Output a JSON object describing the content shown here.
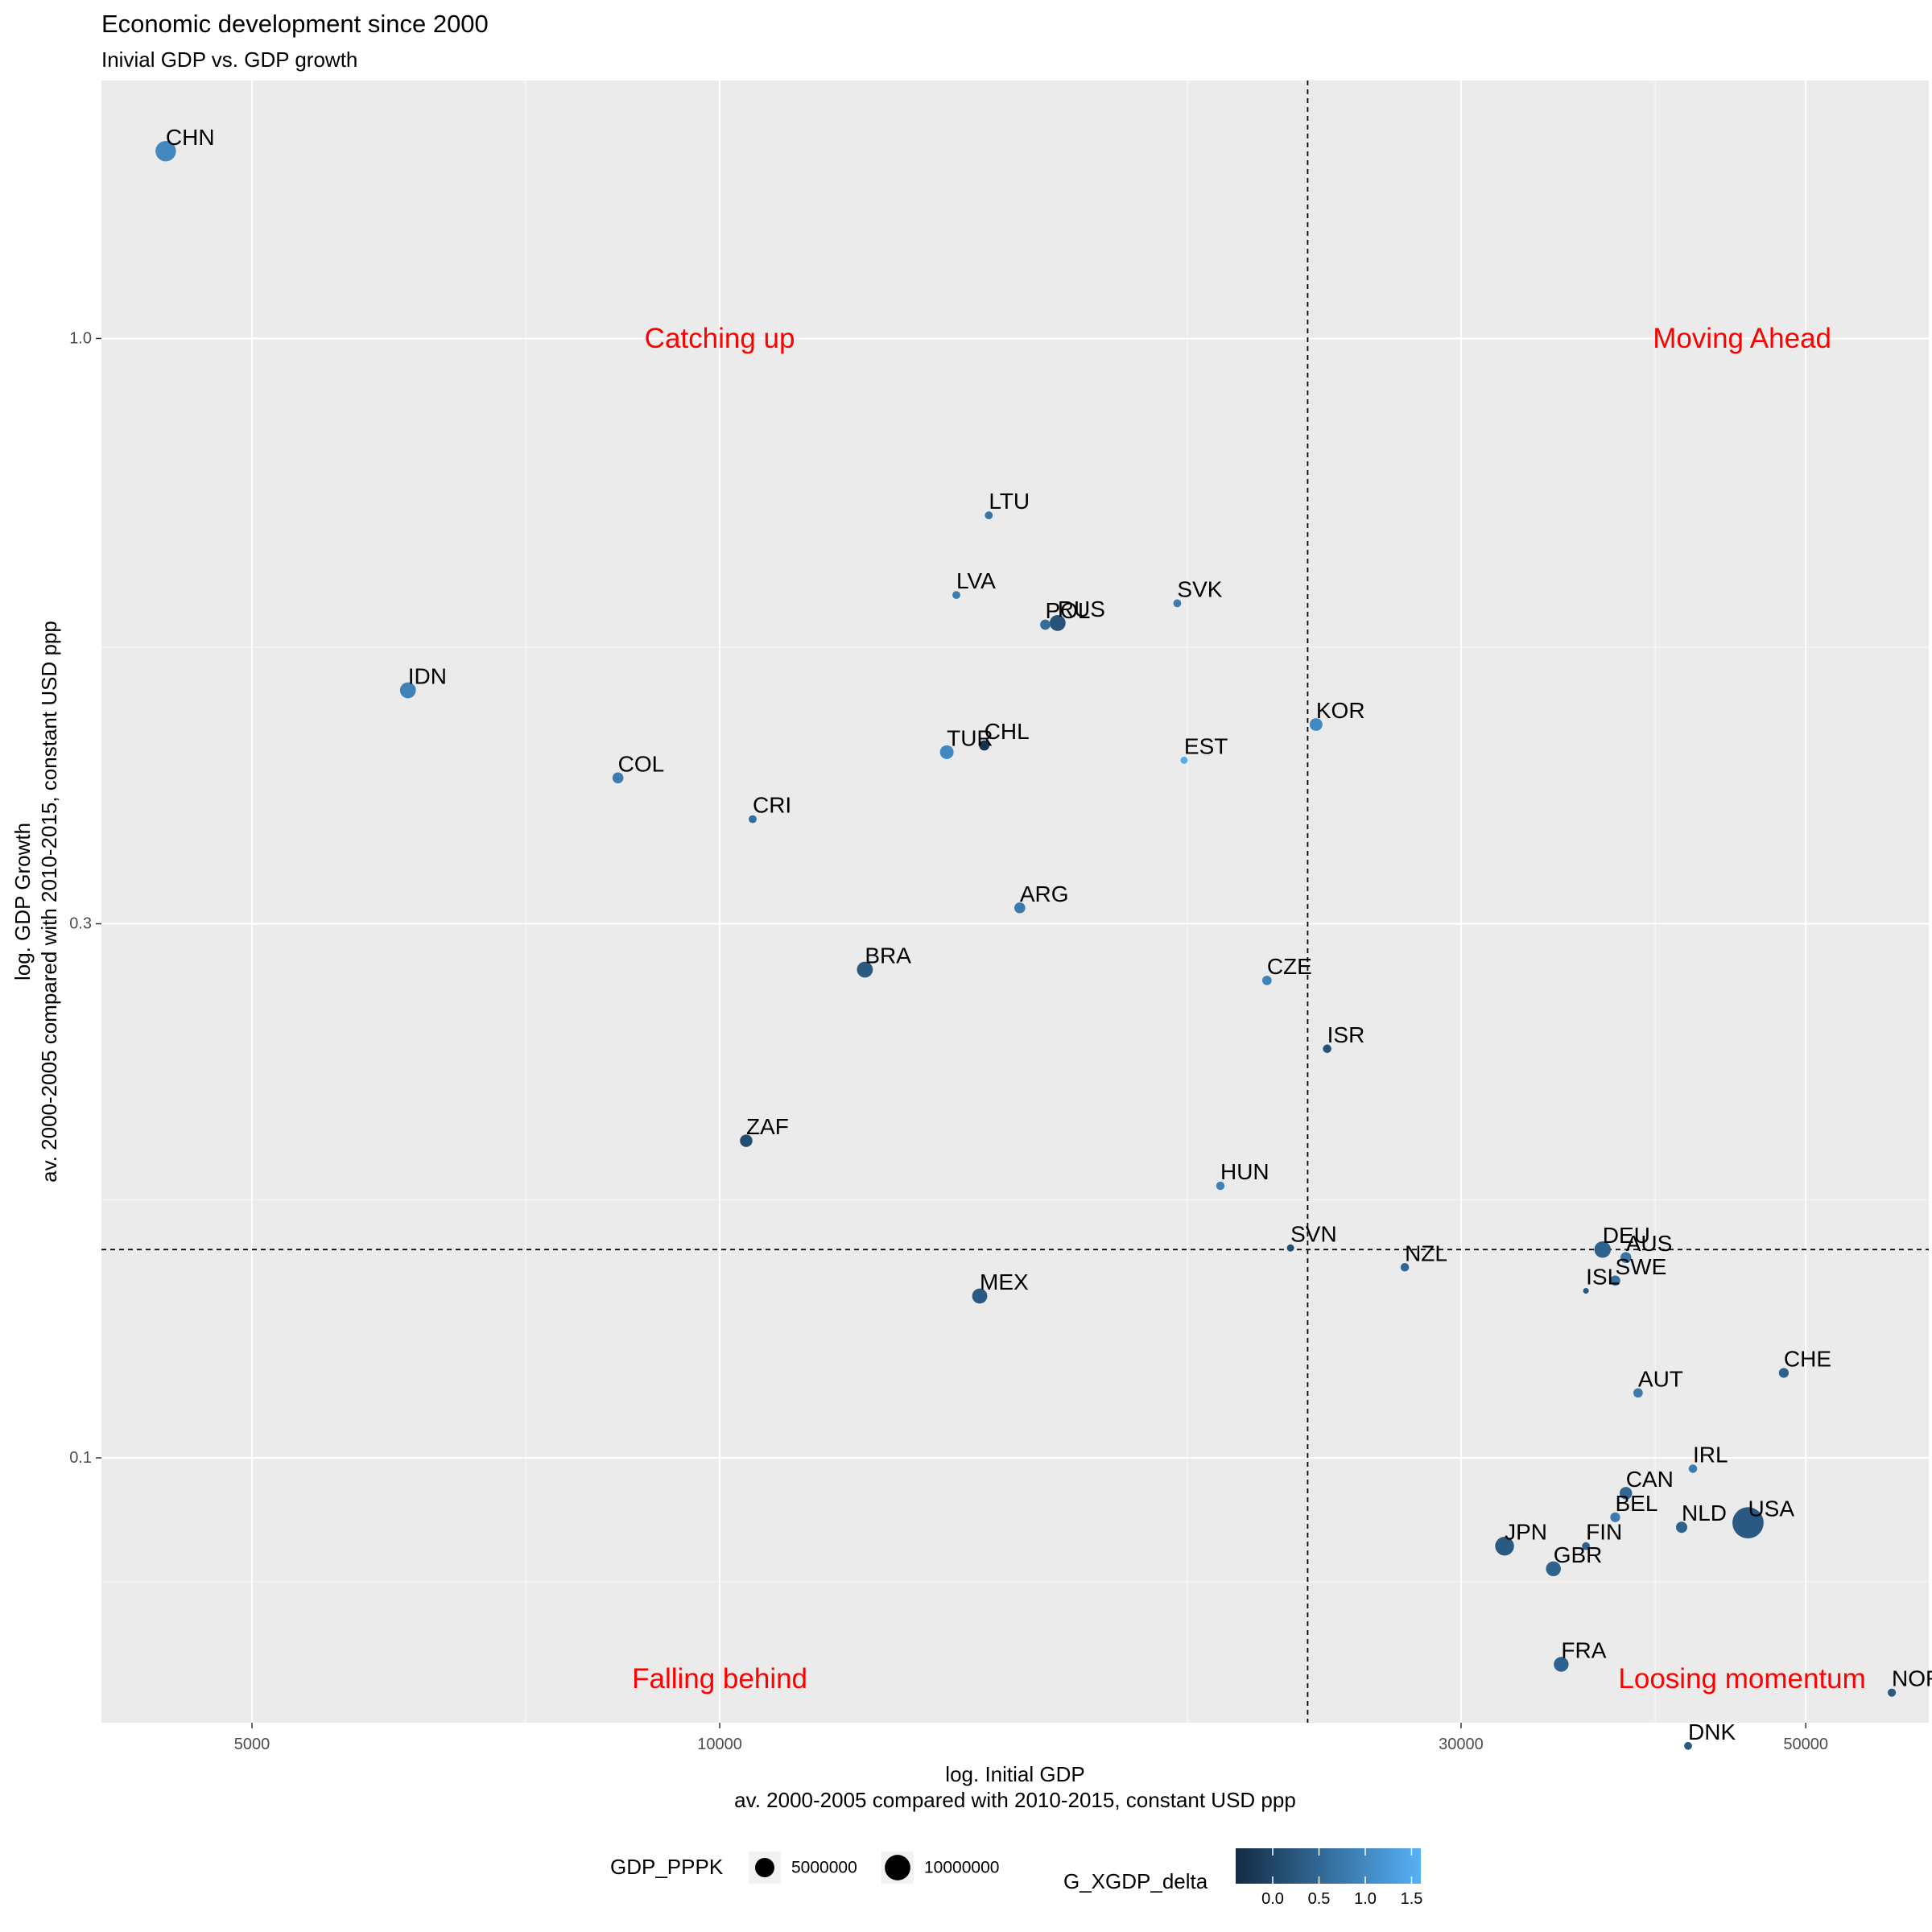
{
  "chart_data": {
    "type": "scatter",
    "title": "Economic development since 2000",
    "subtitle": "Inivial GDP vs. GDP growth",
    "xlabel": "log. Initial GDP",
    "xlabel_sub": "av. 2000-2005 compared with 2010-2015, constant USD ppp",
    "ylabel": "log. GDP Growth",
    "ylabel_sub": "av. 2000-2005 compared with 2010-2015, constant USD ppp",
    "x_scale": "log10",
    "y_scale": "log10",
    "xlim": [
      4000,
      60000
    ],
    "ylim": [
      0.058,
      1.7
    ],
    "x_ticks": [
      5000,
      10000,
      30000,
      50000
    ],
    "x_tick_labels": [
      "5000",
      "10000",
      "30000",
      "50000"
    ],
    "x_minor_ticks": [
      7500,
      20000,
      40000
    ],
    "y_ticks": [
      0.1,
      0.3,
      1.0
    ],
    "y_tick_labels": [
      "0.1",
      "0.3",
      "1.0"
    ],
    "y_minor_ticks": [
      0.0775,
      0.17,
      0.53
    ],
    "grid": true,
    "ref_lines": {
      "x": 23900,
      "y": 0.1535
    },
    "quadrant_labels": [
      {
        "text": "Catching up",
        "x": 10000,
        "y": 1.0
      },
      {
        "text": "Moving Ahead",
        "x": 45500,
        "y": 1.0
      },
      {
        "text": "Falling behind",
        "x": 10000,
        "y": 0.0635
      },
      {
        "text": "Loosing momentum",
        "x": 45500,
        "y": 0.0635
      }
    ],
    "quadrant_label_color": "#ff0000",
    "points": [
      {
        "label": "CHN",
        "x": 4400,
        "y": 1.47,
        "size": 5800000,
        "color_value": 1.0
      },
      {
        "label": "IDN",
        "x": 6300,
        "y": 0.485,
        "size": 3000000,
        "color_value": 0.9
      },
      {
        "label": "COL",
        "x": 8600,
        "y": 0.405,
        "size": 1000000,
        "color_value": 0.8
      },
      {
        "label": "CRI",
        "x": 10500,
        "y": 0.372,
        "size": 300000,
        "color_value": 0.6
      },
      {
        "label": "ZAF",
        "x": 10400,
        "y": 0.192,
        "size": 1500000,
        "color_value": 0.1
      },
      {
        "label": "BRA",
        "x": 12400,
        "y": 0.273,
        "size": 3000000,
        "color_value": 0.3
      },
      {
        "label": "TUR",
        "x": 14000,
        "y": 0.427,
        "size": 2000000,
        "color_value": 1.0
      },
      {
        "label": "CHL",
        "x": 14800,
        "y": 0.433,
        "size": 800000,
        "color_value": -0.3
      },
      {
        "label": "MEX",
        "x": 14700,
        "y": 0.1395,
        "size": 2600000,
        "color_value": 0.3
      },
      {
        "label": "LTU",
        "x": 14900,
        "y": 0.695,
        "size": 300000,
        "color_value": 0.7
      },
      {
        "label": "LVA",
        "x": 14200,
        "y": 0.59,
        "size": 300000,
        "color_value": 0.8
      },
      {
        "label": "ARG",
        "x": 15600,
        "y": 0.31,
        "size": 1000000,
        "color_value": 0.8
      },
      {
        "label": "POL",
        "x": 16200,
        "y": 0.555,
        "size": 800000,
        "color_value": 0.6
      },
      {
        "label": "RUS",
        "x": 16500,
        "y": 0.557,
        "size": 3000000,
        "color_value": 0.2
      },
      {
        "label": "SVK",
        "x": 19700,
        "y": 0.58,
        "size": 300000,
        "color_value": 0.8
      },
      {
        "label": "EST",
        "x": 19900,
        "y": 0.42,
        "size": 200000,
        "color_value": 1.5
      },
      {
        "label": "HUN",
        "x": 21000,
        "y": 0.175,
        "size": 400000,
        "color_value": 0.9
      },
      {
        "label": "CZE",
        "x": 22500,
        "y": 0.267,
        "size": 600000,
        "color_value": 0.9
      },
      {
        "label": "KOR",
        "x": 24200,
        "y": 0.452,
        "size": 1600000,
        "color_value": 1.0
      },
      {
        "label": "SVN",
        "x": 23300,
        "y": 0.154,
        "size": 200000,
        "color_value": 0.1
      },
      {
        "label": "ISR",
        "x": 24600,
        "y": 0.232,
        "size": 400000,
        "color_value": 0.2
      },
      {
        "label": "NZL",
        "x": 27600,
        "y": 0.148,
        "size": 400000,
        "color_value": 0.5
      },
      {
        "label": "DEU",
        "x": 37000,
        "y": 0.1535,
        "size": 3300000,
        "color_value": 0.4
      },
      {
        "label": "AUS",
        "x": 38300,
        "y": 0.151,
        "size": 1000000,
        "color_value": 0.7
      },
      {
        "label": "SWE",
        "x": 37700,
        "y": 0.144,
        "size": 800000,
        "color_value": 0.6
      },
      {
        "label": "ISL",
        "x": 36100,
        "y": 0.141,
        "size": 50000,
        "color_value": 0.3
      },
      {
        "label": "AUT",
        "x": 39000,
        "y": 0.1143,
        "size": 600000,
        "color_value": 0.8
      },
      {
        "label": "CHE",
        "x": 48400,
        "y": 0.1191,
        "size": 700000,
        "color_value": 0.4
      },
      {
        "label": "IRL",
        "x": 42300,
        "y": 0.0978,
        "size": 400000,
        "color_value": 0.8
      },
      {
        "label": "CAN",
        "x": 38300,
        "y": 0.093,
        "size": 1500000,
        "color_value": 0.5
      },
      {
        "label": "BEL",
        "x": 37700,
        "y": 0.0885,
        "size": 700000,
        "color_value": 0.8
      },
      {
        "label": "NLD",
        "x": 41600,
        "y": 0.0867,
        "size": 1100000,
        "color_value": 0.4
      },
      {
        "label": "USA",
        "x": 45900,
        "y": 0.0875,
        "size": 16000000,
        "color_value": 0.3
      },
      {
        "label": "JPN",
        "x": 32000,
        "y": 0.0834,
        "size": 4700000,
        "color_value": 0.3
      },
      {
        "label": "FIN",
        "x": 36100,
        "y": 0.0834,
        "size": 300000,
        "color_value": 0.4
      },
      {
        "label": "GBR",
        "x": 34400,
        "y": 0.0796,
        "size": 2500000,
        "color_value": 0.4
      },
      {
        "label": "FRA",
        "x": 34800,
        "y": 0.0654,
        "size": 2500000,
        "color_value": 0.4
      },
      {
        "label": "NOR",
        "x": 56800,
        "y": 0.0617,
        "size": 350000,
        "color_value": 0.3
      },
      {
        "label": "DNK",
        "x": 42000,
        "y": 0.0553,
        "size": 300000,
        "color_value": 0.3
      }
    ],
    "legend": {
      "position": "bottom",
      "size_title": "GDP_PPPK",
      "size_entries": [
        {
          "value": 5000000,
          "label": "5000000"
        },
        {
          "value": 10000000,
          "label": "10000000"
        }
      ],
      "color_title": "G_XGDP_delta",
      "color_ticks": [
        0.0,
        0.5,
        1.0,
        1.5
      ],
      "color_tick_labels": [
        "0.0",
        "0.5",
        "1.0",
        "1.5"
      ],
      "color_range": [
        -0.4,
        1.6
      ],
      "color_low": "#132B43",
      "color_high": "#56B1F7"
    }
  }
}
